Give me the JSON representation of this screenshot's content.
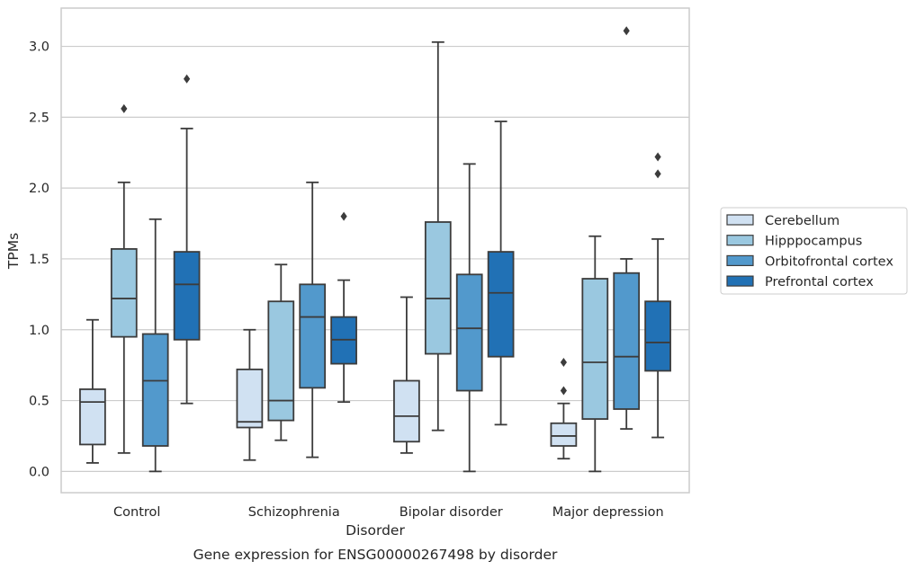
{
  "chart_data": {
    "type": "boxplot",
    "title": "",
    "caption": "Gene expression for ENSG00000267498 by disorder",
    "xlabel": "Disorder",
    "ylabel": "TPMs",
    "ylim": [
      -0.15,
      3.27
    ],
    "yticks": [
      0.0,
      0.5,
      1.0,
      1.5,
      2.0,
      2.5,
      3.0
    ],
    "ytick_labels": [
      "0.0",
      "0.5",
      "1.0",
      "1.5",
      "2.0",
      "2.5",
      "3.0"
    ],
    "grid": "horizontal",
    "legend_position": "right",
    "categories": [
      "Control",
      "Schizophrenia",
      "Bipolar disorder",
      "Major depression"
    ],
    "series": [
      {
        "name": "Cerebellum",
        "color": "#d0e1f2",
        "boxes": [
          {
            "whislo": 0.06,
            "q1": 0.19,
            "med": 0.49,
            "q3": 0.58,
            "whishi": 1.07,
            "fliers": []
          },
          {
            "whislo": 0.08,
            "q1": 0.31,
            "med": 0.35,
            "q3": 0.72,
            "whishi": 1.0,
            "fliers": []
          },
          {
            "whislo": 0.13,
            "q1": 0.21,
            "med": 0.39,
            "q3": 0.64,
            "whishi": 1.23,
            "fliers": []
          },
          {
            "whislo": 0.09,
            "q1": 0.18,
            "med": 0.25,
            "q3": 0.34,
            "whishi": 0.48,
            "fliers": [
              0.57,
              0.77
            ]
          }
        ]
      },
      {
        "name": "Hipppocampus",
        "color": "#9ac8e0",
        "boxes": [
          {
            "whislo": 0.13,
            "q1": 0.95,
            "med": 1.22,
            "q3": 1.57,
            "whishi": 2.04,
            "fliers": [
              2.56
            ]
          },
          {
            "whislo": 0.22,
            "q1": 0.36,
            "med": 0.5,
            "q3": 1.2,
            "whishi": 1.46,
            "fliers": []
          },
          {
            "whislo": 0.29,
            "q1": 0.83,
            "med": 1.22,
            "q3": 1.76,
            "whishi": 3.03,
            "fliers": []
          },
          {
            "whislo": 0.0,
            "q1": 0.37,
            "med": 0.77,
            "q3": 1.36,
            "whishi": 1.66,
            "fliers": []
          }
        ]
      },
      {
        "name": "Orbitofrontal cortex",
        "color": "#5299cc",
        "boxes": [
          {
            "whislo": 0.0,
            "q1": 0.18,
            "med": 0.64,
            "q3": 0.97,
            "whishi": 1.78,
            "fliers": []
          },
          {
            "whislo": 0.1,
            "q1": 0.59,
            "med": 1.09,
            "q3": 1.32,
            "whishi": 2.04,
            "fliers": []
          },
          {
            "whislo": 0.0,
            "q1": 0.57,
            "med": 1.01,
            "q3": 1.39,
            "whishi": 2.17,
            "fliers": []
          },
          {
            "whislo": 0.3,
            "q1": 0.44,
            "med": 0.81,
            "q3": 1.4,
            "whishi": 1.5,
            "fliers": [
              3.11
            ]
          }
        ]
      },
      {
        "name": "Prefrontal cortex",
        "color": "#2171b5",
        "boxes": [
          {
            "whislo": 0.48,
            "q1": 0.93,
            "med": 1.32,
            "q3": 1.55,
            "whishi": 2.42,
            "fliers": [
              2.77
            ]
          },
          {
            "whislo": 0.49,
            "q1": 0.76,
            "med": 0.93,
            "q3": 1.09,
            "whishi": 1.35,
            "fliers": [
              1.8
            ]
          },
          {
            "whislo": 0.33,
            "q1": 0.81,
            "med": 1.26,
            "q3": 1.55,
            "whishi": 2.47,
            "fliers": []
          },
          {
            "whislo": 0.24,
            "q1": 0.71,
            "med": 0.91,
            "q3": 1.2,
            "whishi": 1.64,
            "fliers": [
              2.1,
              2.22
            ]
          }
        ]
      }
    ]
  }
}
